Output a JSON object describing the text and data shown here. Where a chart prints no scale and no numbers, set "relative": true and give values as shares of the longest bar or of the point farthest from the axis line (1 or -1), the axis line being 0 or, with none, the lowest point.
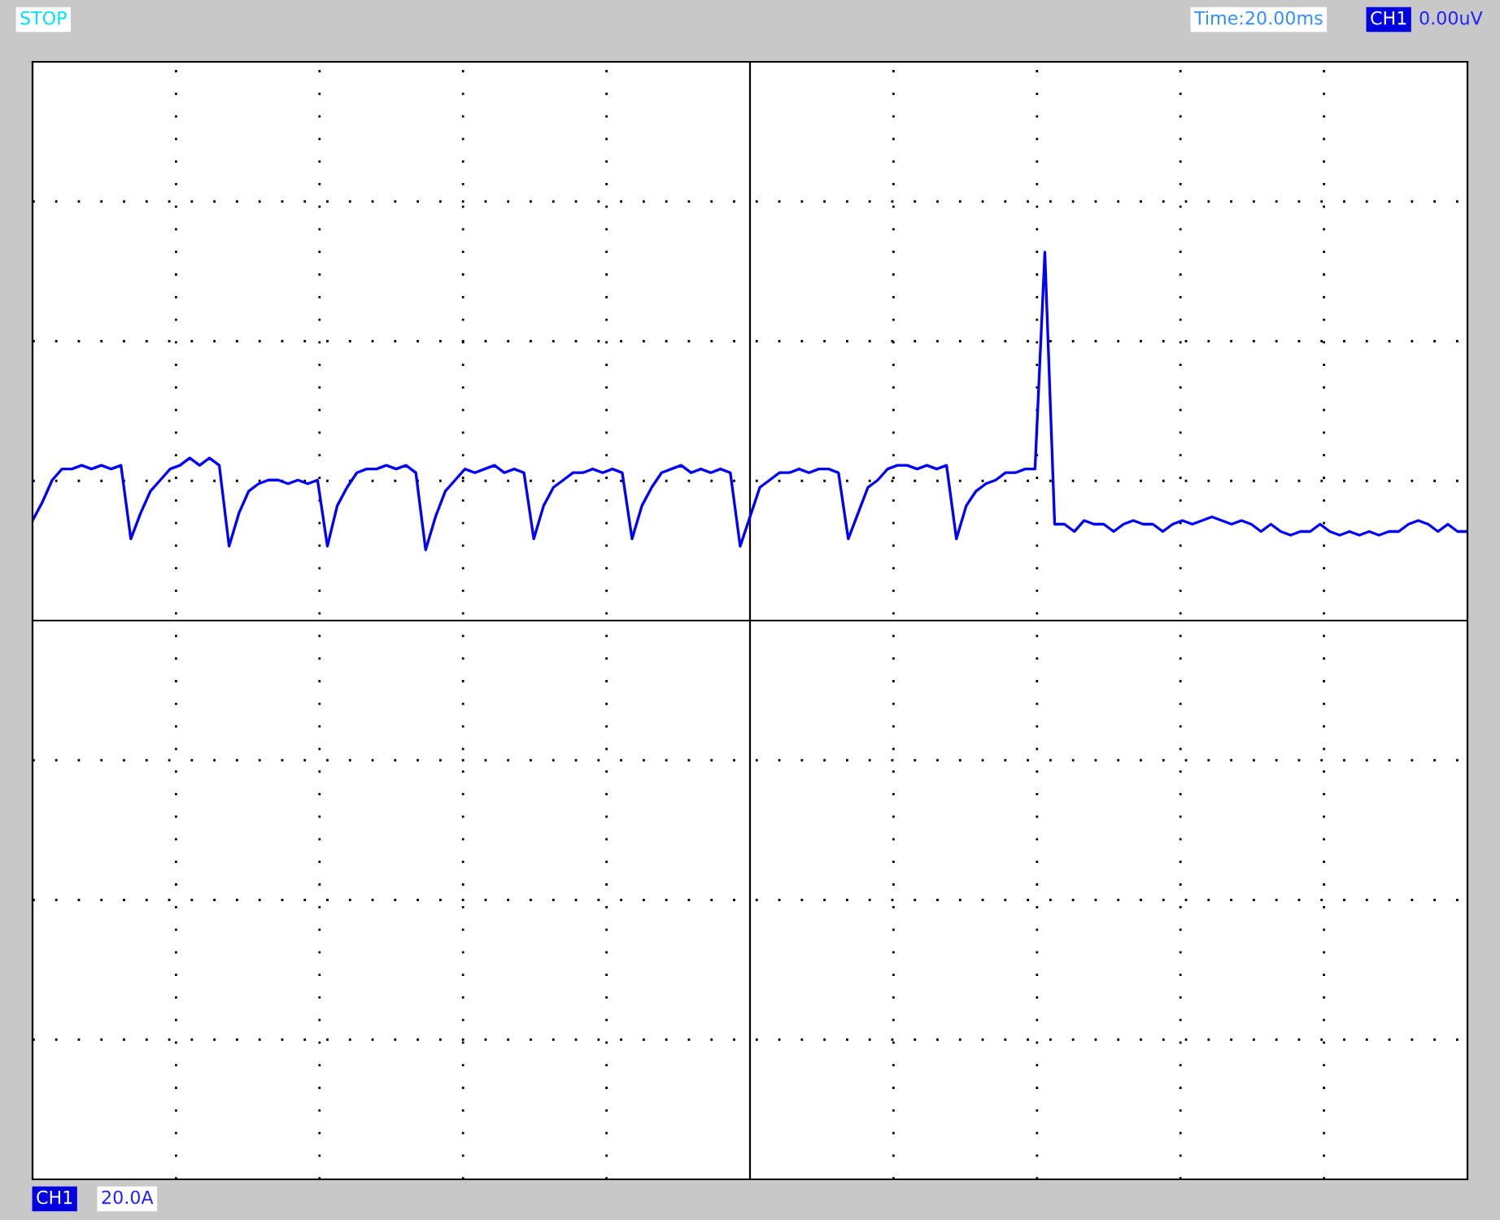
{
  "chart_data": {
    "type": "line",
    "relative": true,
    "grid": true,
    "legend": false,
    "marker": "none",
    "line_style": "solid",
    "categories": [
      null,
      null,
      null,
      null,
      null,
      null,
      null,
      null,
      null,
      null,
      null,
      null,
      null,
      null,
      null,
      null,
      null,
      null,
      null,
      null,
      null,
      null,
      null,
      null,
      null,
      null,
      null,
      null,
      null,
      null,
      null,
      null,
      null,
      null,
      null,
      null,
      null,
      null,
      null,
      null,
      null,
      null,
      null,
      null,
      null,
      null,
      null,
      null,
      null,
      null,
      null,
      null,
      null,
      null,
      null,
      null,
      null,
      null,
      null,
      null,
      null,
      null,
      null,
      null,
      null,
      null,
      null,
      null,
      null,
      null,
      null,
      null,
      null,
      null,
      null,
      null,
      null,
      null,
      null,
      null,
      null,
      null,
      null,
      null,
      null,
      null,
      null,
      null,
      null,
      null,
      null,
      null,
      null,
      null,
      null,
      null,
      null,
      null,
      null,
      null,
      null,
      null,
      null,
      null,
      null,
      null,
      null,
      null,
      null,
      null,
      null,
      null,
      null,
      null,
      null,
      null,
      null,
      null,
      null,
      null,
      null,
      null,
      null,
      null,
      null,
      null,
      null,
      null,
      null,
      null,
      null,
      null,
      null,
      null,
      null,
      null,
      null,
      null,
      null,
      null,
      null,
      null,
      null,
      null,
      null,
      null,
      null
    ],
    "series": [
      {
        "color": "#0000ff",
        "values": [
          0.27,
          0.32,
          0.38,
          0.41,
          0.41,
          0.42,
          0.41,
          0.42,
          0.41,
          0.42,
          0.22,
          0.29,
          0.35,
          0.38,
          0.41,
          0.42,
          0.44,
          0.42,
          0.44,
          0.42,
          0.2,
          0.29,
          0.35,
          0.37,
          0.38,
          0.38,
          0.37,
          0.38,
          0.37,
          0.38,
          0.2,
          0.31,
          0.36,
          0.4,
          0.41,
          0.41,
          0.42,
          0.41,
          0.42,
          0.4,
          0.19,
          0.28,
          0.35,
          0.38,
          0.41,
          0.4,
          0.41,
          0.42,
          0.4,
          0.41,
          0.4,
          0.22,
          0.31,
          0.36,
          0.38,
          0.4,
          0.4,
          0.41,
          0.4,
          0.41,
          0.4,
          0.22,
          0.31,
          0.36,
          0.4,
          0.41,
          0.42,
          0.4,
          0.41,
          0.4,
          0.41,
          0.4,
          0.2,
          0.28,
          0.36,
          0.38,
          0.4,
          0.4,
          0.41,
          0.4,
          0.41,
          0.41,
          0.4,
          0.22,
          0.29,
          0.36,
          0.38,
          0.41,
          0.42,
          0.42,
          0.41,
          0.42,
          0.41,
          0.42,
          0.22,
          0.31,
          0.35,
          0.37,
          0.38,
          0.4,
          0.4,
          0.41,
          0.41,
          1.0,
          0.26,
          0.26,
          0.24,
          0.27,
          0.26,
          0.26,
          0.24,
          0.26,
          0.27,
          0.26,
          0.26,
          0.24,
          0.26,
          0.27,
          0.26,
          0.27,
          0.28,
          0.27,
          0.26,
          0.27,
          0.26,
          0.24,
          0.26,
          0.24,
          0.23,
          0.24,
          0.24,
          0.26,
          0.24,
          0.23,
          0.24,
          0.23,
          0.24,
          0.23,
          0.24,
          0.24,
          0.26,
          0.27,
          0.26,
          0.24,
          0.26,
          0.24,
          0.24
        ]
      }
    ],
    "annotations": [
      "STOP",
      "Time:20.00ms",
      "CH1",
      "0.00uV",
      "CH1",
      "20.0A"
    ]
  }
}
